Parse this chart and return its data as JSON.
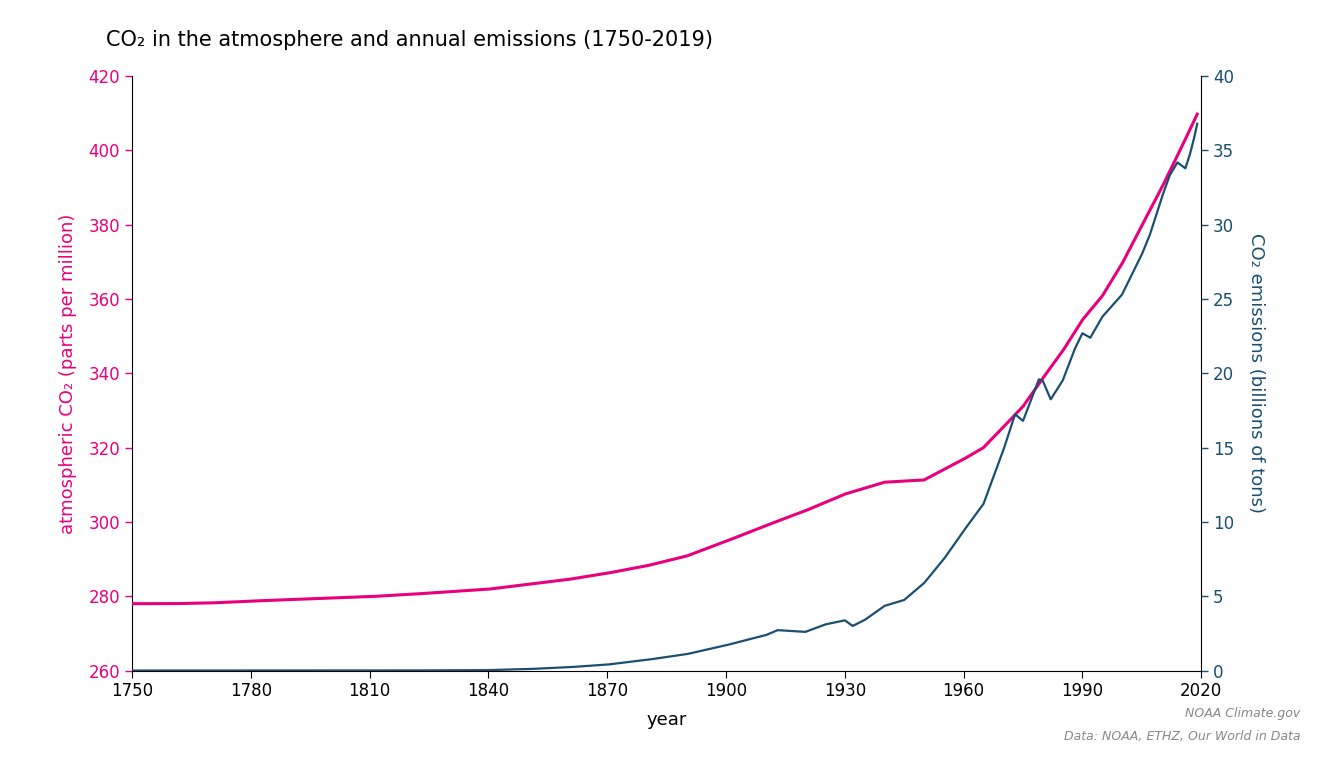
{
  "title": "CO₂ in the atmosphere and annual emissions (1750-2019)",
  "xlabel": "year",
  "ylabel_left": "atmospheric CO₂ (parts per million)",
  "ylabel_right": "CO₂ emissions (billions of tons)",
  "color_ppm": "#E8007D",
  "color_emissions": "#1B4F72",
  "ylim_left": [
    260,
    420
  ],
  "ylim_right": [
    0,
    40
  ],
  "yticks_left": [
    260,
    280,
    300,
    320,
    340,
    360,
    380,
    400,
    420
  ],
  "yticks_right": [
    0,
    5,
    10,
    15,
    20,
    25,
    30,
    35,
    40
  ],
  "xticks": [
    1750,
    1780,
    1810,
    1840,
    1870,
    1900,
    1930,
    1960,
    1990,
    2020
  ],
  "xlim": [
    1750,
    2020
  ],
  "source_text1": "NOAA Climate.gov",
  "source_text2": "Data: NOAA, ETHZ, Our World in Data",
  "background_color": "#FFFFFF",
  "ppm_data": {
    "years": [
      1750,
      1760,
      1770,
      1780,
      1790,
      1800,
      1810,
      1820,
      1830,
      1840,
      1850,
      1860,
      1870,
      1880,
      1890,
      1900,
      1910,
      1920,
      1930,
      1940,
      1950,
      1960,
      1965,
      1970,
      1975,
      1980,
      1985,
      1990,
      1995,
      2000,
      2005,
      2010,
      2015,
      2019
    ],
    "values": [
      278.0,
      278.0,
      278.2,
      278.7,
      279.1,
      279.5,
      279.9,
      280.5,
      281.2,
      281.9,
      283.2,
      284.5,
      286.2,
      288.2,
      290.8,
      294.8,
      299.0,
      303.0,
      307.5,
      310.7,
      311.3,
      316.9,
      320.0,
      325.5,
      331.1,
      338.7,
      346.0,
      354.4,
      360.8,
      369.5,
      379.8,
      389.9,
      400.8,
      409.8
    ]
  },
  "emissions_data": {
    "years": [
      1750,
      1760,
      1770,
      1780,
      1790,
      1800,
      1810,
      1820,
      1830,
      1840,
      1850,
      1860,
      1870,
      1880,
      1890,
      1900,
      1905,
      1910,
      1913,
      1920,
      1925,
      1930,
      1932,
      1935,
      1940,
      1945,
      1950,
      1955,
      1960,
      1965,
      1970,
      1973,
      1975,
      1979,
      1980,
      1982,
      1985,
      1988,
      1990,
      1992,
      1995,
      2000,
      2005,
      2007,
      2010,
      2012,
      2014,
      2015,
      2016,
      2017,
      2018,
      2019
    ],
    "values": [
      0.003,
      0.003,
      0.003,
      0.003,
      0.004,
      0.005,
      0.006,
      0.008,
      0.015,
      0.03,
      0.1,
      0.22,
      0.4,
      0.72,
      1.1,
      1.7,
      2.05,
      2.38,
      2.72,
      2.6,
      3.1,
      3.38,
      3.0,
      3.4,
      4.35,
      4.75,
      5.88,
      7.5,
      9.4,
      11.2,
      14.8,
      17.25,
      16.8,
      19.6,
      19.5,
      18.25,
      19.5,
      21.6,
      22.7,
      22.4,
      23.8,
      25.3,
      28.0,
      29.3,
      31.8,
      33.3,
      34.2,
      34.0,
      33.8,
      34.6,
      35.6,
      36.8
    ]
  }
}
